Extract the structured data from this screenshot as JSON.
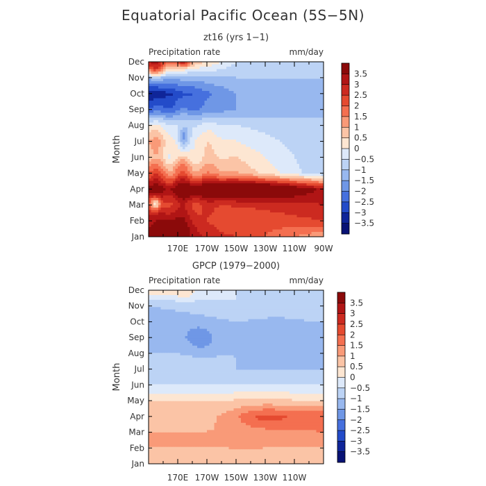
{
  "title": "Equatorial Pacific Ocean (5S−5N)",
  "chart_data": [
    {
      "type": "heatmap",
      "panel_title": "zt16 (yrs 1−1)",
      "subtitle_left": "Precipitation rate",
      "subtitle_right": "mm/day",
      "ylabel": "Month",
      "xlabel": "",
      "x_tick_labels": [
        "170E",
        "170W",
        "150W",
        "130W",
        "110W",
        "90W"
      ],
      "y_tick_labels": [
        "Jan",
        "Feb",
        "Mar",
        "Apr",
        "May",
        "Jun",
        "Jul",
        "Aug",
        "Sep",
        "Oct",
        "Nov",
        "Dec"
      ],
      "colorbar_labels": [
        "3.5",
        "3",
        "2.5",
        "2",
        "1.5",
        "1",
        "0.5",
        "0",
        "−0.5",
        "−1",
        "−1.5",
        "−2",
        "−2.5",
        "−3",
        "−3.5"
      ],
      "xlim_lon": [
        150,
        270
      ],
      "ylim_month": [
        1,
        12
      ],
      "approx_field_by_month": [
        {
          "month": "Jan",
          "west": 3.5,
          "central": 2.5,
          "east": 1.0
        },
        {
          "month": "Feb",
          "west": 3.0,
          "central": 2.0,
          "east": 2.5
        },
        {
          "month": "Mar",
          "west": 2.5,
          "central": 2.5,
          "east": 3.0
        },
        {
          "month": "Apr",
          "west": 3.5,
          "central": 3.5,
          "east": 3.0
        },
        {
          "month": "May",
          "west": 2.0,
          "central": 1.0,
          "east": -1.0
        },
        {
          "month": "Jun",
          "west": 0.5,
          "central": 0.5,
          "east": -1.0
        },
        {
          "month": "Jul",
          "west": 1.0,
          "central": 0.0,
          "east": -1.0
        },
        {
          "month": "Aug",
          "west": 0.0,
          "central": -0.5,
          "east": -1.0
        },
        {
          "month": "Sep",
          "west": -2.5,
          "central": -1.5,
          "east": -1.0
        },
        {
          "month": "Oct",
          "west": -3.5,
          "central": -1.5,
          "east": -1.0
        },
        {
          "month": "Nov",
          "west": -1.5,
          "central": -1.0,
          "east": -1.0
        },
        {
          "month": "Dec",
          "west": 2.5,
          "central": -0.5,
          "east": -1.0
        }
      ]
    },
    {
      "type": "heatmap",
      "panel_title": "GPCP (1979−2000)",
      "subtitle_left": "Precipitation rate",
      "subtitle_right": "mm/day",
      "ylabel": "Month",
      "xlabel": "",
      "x_tick_labels": [
        "170E",
        "170W",
        "150W",
        "130W",
        "110W"
      ],
      "y_tick_labels": [
        "Jan",
        "Feb",
        "Mar",
        "Apr",
        "May",
        "Jun",
        "Jul",
        "Aug",
        "Sep",
        "Oct",
        "Nov",
        "Dec"
      ],
      "colorbar_labels": [
        "3.5",
        "3",
        "2.5",
        "2",
        "1.5",
        "1",
        "0.5",
        "0",
        "−0.5",
        "−1",
        "−1.5",
        "−2",
        "−2.5",
        "−3",
        "−3.5"
      ],
      "xlim_lon": [
        150,
        270
      ],
      "ylim_month": [
        1,
        12
      ],
      "approx_field_by_month": [
        {
          "month": "Jan",
          "west": 0.5,
          "central": 1.0,
          "east": 0.5
        },
        {
          "month": "Feb",
          "west": 1.0,
          "central": 1.0,
          "east": 1.0
        },
        {
          "month": "Mar",
          "west": 1.0,
          "central": 1.0,
          "east": 1.5
        },
        {
          "month": "Apr",
          "west": 0.5,
          "central": 1.0,
          "east": 2.0
        },
        {
          "month": "May",
          "west": 0.5,
          "central": 0.5,
          "east": 0.5
        },
        {
          "month": "Jun",
          "west": -0.5,
          "central": -0.5,
          "east": -0.5
        },
        {
          "month": "Jul",
          "west": -0.5,
          "central": -1.0,
          "east": -1.0
        },
        {
          "month": "Aug",
          "west": -1.0,
          "central": -1.0,
          "east": -1.0
        },
        {
          "month": "Sep",
          "west": -1.5,
          "central": -1.0,
          "east": -1.0
        },
        {
          "month": "Oct",
          "west": -1.5,
          "central": -1.0,
          "east": -1.0
        },
        {
          "month": "Nov",
          "west": -1.0,
          "central": -0.5,
          "east": -1.0
        },
        {
          "month": "Dec",
          "west": 0.5,
          "central": -0.5,
          "east": -0.5
        }
      ]
    }
  ]
}
